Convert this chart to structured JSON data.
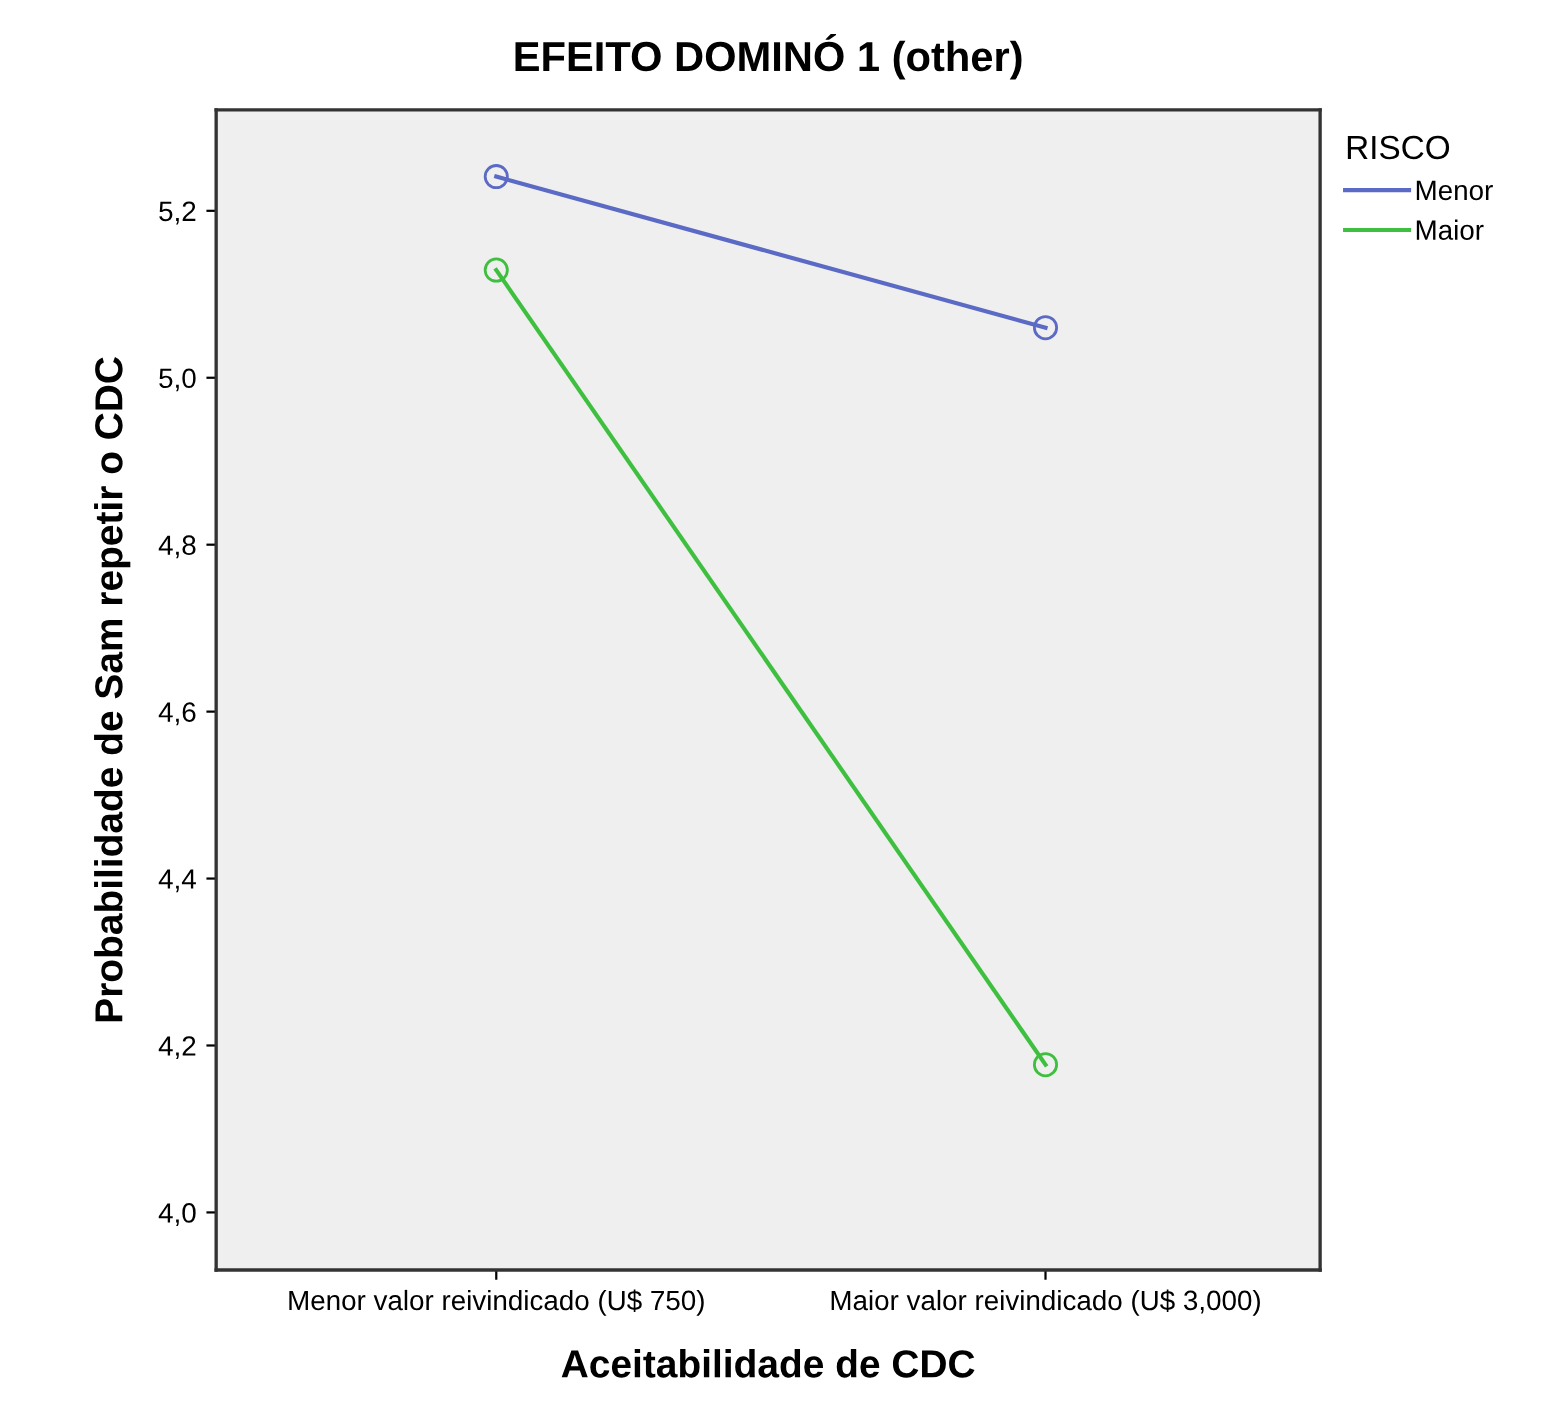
{
  "chart_data": {
    "type": "line",
    "title": "EFEITO DOMINÓ 1 (other)",
    "xlabel": "Aceitabilidade de CDC",
    "ylabel": "Probabilidade de Sam repetir o CDC",
    "legend_title": "RISCO",
    "categories": [
      "Menor valor reivindicado (U$ 750)",
      "Maior valor reivindicado (U$ 3,000)"
    ],
    "series": [
      {
        "name": "Menor",
        "color": "#5b6ac4",
        "values": [
          5.241,
          5.06
        ]
      },
      {
        "name": "Maior",
        "color": "#3fbf3f",
        "values": [
          5.129,
          4.177
        ]
      }
    ],
    "ylim": [
      3.931,
      5.321
    ],
    "yticks": [
      {
        "value": 4.0,
        "label": "4,0"
      },
      {
        "value": 4.2,
        "label": "4,2"
      },
      {
        "value": 4.4,
        "label": "4,4"
      },
      {
        "value": 4.6,
        "label": "4,6"
      },
      {
        "value": 4.8,
        "label": "4,8"
      },
      {
        "value": 5.0,
        "label": "5,0"
      },
      {
        "value": 5.2,
        "label": "5,2"
      }
    ],
    "marker": "circle",
    "line_style": "solid",
    "legend": "top right",
    "grid": false
  }
}
